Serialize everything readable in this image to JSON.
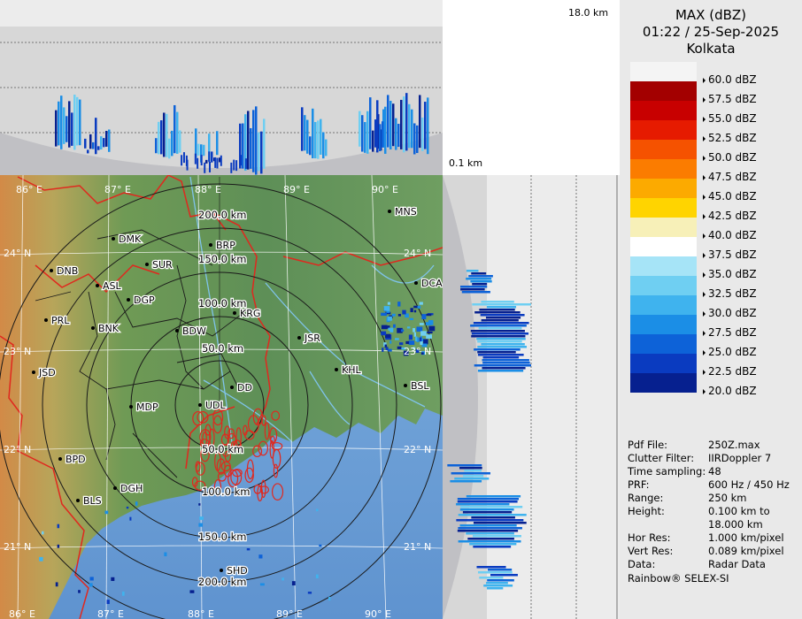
{
  "product": {
    "title": "MAX (dBZ)",
    "datetime": "01:22 / 25-Sep-2025",
    "station": "Kolkata"
  },
  "section_labels": {
    "top_height": "18.0 km",
    "low_height": "0.1 km"
  },
  "legend": {
    "entries": [
      {
        "label": "60.0 dBZ",
        "color": "#f4f4f4"
      },
      {
        "label": "57.5 dBZ",
        "color": "#a30000"
      },
      {
        "label": "55.0 dBZ",
        "color": "#c80000"
      },
      {
        "label": "52.5 dBZ",
        "color": "#e61b00"
      },
      {
        "label": "50.0 dBZ",
        "color": "#f55200"
      },
      {
        "label": "47.5 dBZ",
        "color": "#fb7c00"
      },
      {
        "label": "45.0 dBZ",
        "color": "#fcaa00"
      },
      {
        "label": "42.5 dBZ",
        "color": "#ffd400"
      },
      {
        "label": "40.0 dBZ",
        "color": "#f7f0b8"
      },
      {
        "label": "37.5 dBZ",
        "color": "#ffffff"
      },
      {
        "label": "35.0 dBZ",
        "color": "#a6e4f7"
      },
      {
        "label": "32.5 dBZ",
        "color": "#6fcff2"
      },
      {
        "label": "30.0 dBZ",
        "color": "#3fb3ee"
      },
      {
        "label": "27.5 dBZ",
        "color": "#1b8ee6"
      },
      {
        "label": "25.0 dBZ",
        "color": "#0d62d8"
      },
      {
        "label": "22.5 dBZ",
        "color": "#0a3bc0"
      },
      {
        "label": "20.0 dBZ",
        "color": "#06208f"
      }
    ]
  },
  "info": [
    {
      "key": "Pdf File:",
      "value": "250Z.max"
    },
    {
      "key": "Clutter Filter:",
      "value": "IIRDoppler 7"
    },
    {
      "key": "Time sampling:",
      "value": "48"
    },
    {
      "key": "PRF:",
      "value": "600 Hz / 450 Hz"
    },
    {
      "key": "Range:",
      "value": "250 km"
    },
    {
      "key": "Height:",
      "value": "0.100 km to"
    },
    {
      "key": "",
      "value": "18.000 km"
    },
    {
      "key": "Hor Res:",
      "value": "1.000 km/pixel"
    },
    {
      "key": "Vert Res:",
      "value": "0.089 km/pixel"
    },
    {
      "key": "Data:",
      "value": "Radar Data"
    }
  ],
  "branding": "Rainbow® SELEX-SI",
  "map": {
    "lon_labels_top": [
      "86° E",
      "87° E",
      "88° E",
      "89° E",
      "90° E"
    ],
    "lon_labels_bottom": [
      "86° E",
      "87° E",
      "88° E",
      "89° E",
      "90° E"
    ],
    "lat_labels_left": [
      "24° N",
      "23° N",
      "22° N",
      "21° N"
    ],
    "lat_labels_right": [
      "24° N",
      "23° N",
      "22° N",
      "21° N"
    ],
    "range_rings": [
      "50.0 km",
      "100.0 km",
      "150.0 km",
      "200.0 km"
    ],
    "range_rings_lower": [
      "50.0 km",
      "100.0 km",
      "150.0 km",
      "200.0 km"
    ],
    "cities": [
      {
        "name": "MNS"
      },
      {
        "name": "DMK"
      },
      {
        "name": "BRP"
      },
      {
        "name": "SUR"
      },
      {
        "name": "DNB"
      },
      {
        "name": "ASL"
      },
      {
        "name": "DGP"
      },
      {
        "name": "DCA"
      },
      {
        "name": "KRG"
      },
      {
        "name": "PRL"
      },
      {
        "name": "BNK"
      },
      {
        "name": "BDW"
      },
      {
        "name": "JSR"
      },
      {
        "name": "KHL"
      },
      {
        "name": "JSD"
      },
      {
        "name": "DD"
      },
      {
        "name": "BSL"
      },
      {
        "name": "MDP"
      },
      {
        "name": "UDL"
      },
      {
        "name": "BPD"
      },
      {
        "name": "DGH"
      },
      {
        "name": "BLS"
      },
      {
        "name": "SHD"
      }
    ]
  }
}
